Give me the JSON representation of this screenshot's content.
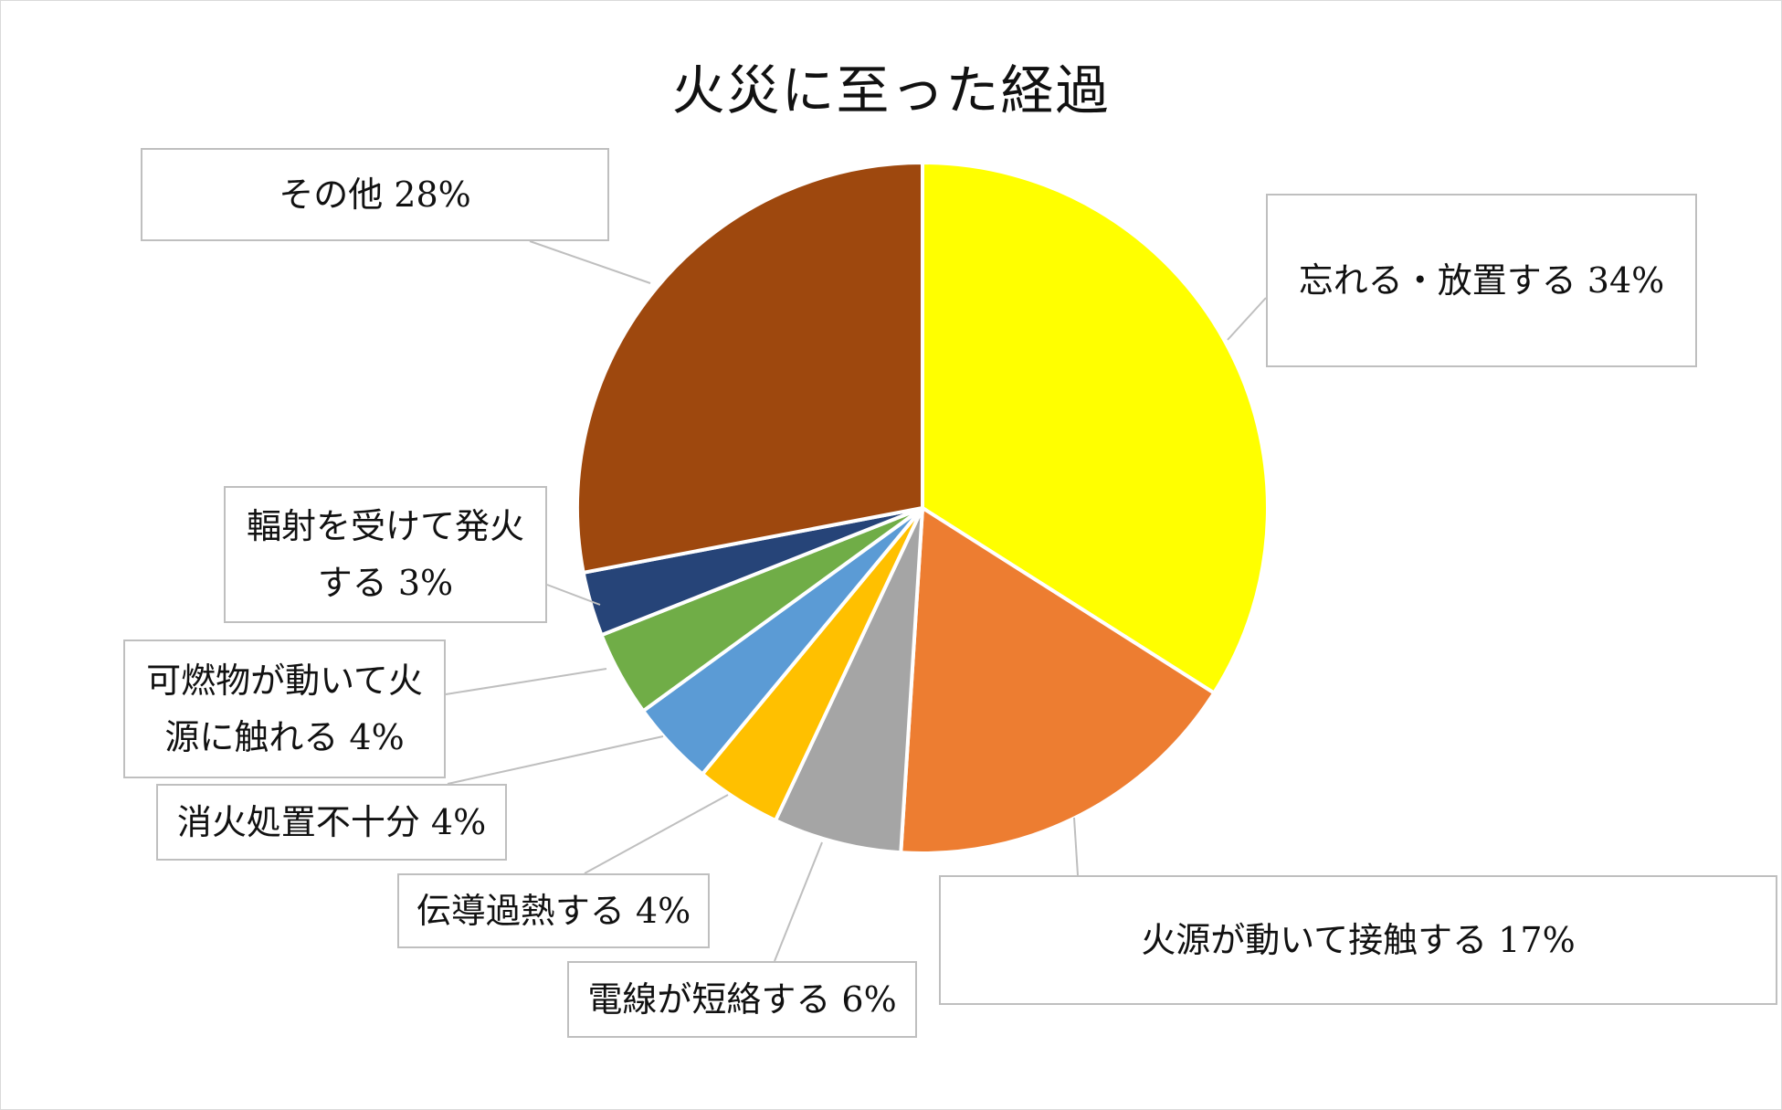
{
  "chart_data": {
    "type": "pie",
    "title": "火災に至った経過",
    "start_angle_deg": 0,
    "direction": "clockwise",
    "slices": [
      {
        "label": "忘れる・放置する 34%",
        "value": 34,
        "color": "#FFFF00"
      },
      {
        "label": "火源が動いて接触する 17%",
        "value": 17,
        "color": "#ED7D31"
      },
      {
        "label": "電線が短絡する 6%",
        "value": 6,
        "color": "#A5A5A5"
      },
      {
        "label": "伝導過熱する 4%",
        "value": 4,
        "color": "#FFC000"
      },
      {
        "label": "消火処置不十分 4%",
        "value": 4,
        "color": "#5B9BD5"
      },
      {
        "label": "可燃物が動いて火源に触れる 4%",
        "value": 4,
        "color": "#70AD47"
      },
      {
        "label": "輻射を受けて発火する 3%",
        "value": 3,
        "color": "#264478"
      },
      {
        "label": "その他 28%",
        "value": 28,
        "color": "#9E480E"
      }
    ],
    "callouts": {
      "s0": [
        "忘れる・放置する 34%"
      ],
      "s1": [
        "火源が動いて接触する 17%"
      ],
      "s2": [
        "電線が短絡する 6%"
      ],
      "s3": [
        "伝導過熱する 4%"
      ],
      "s4": [
        "消火処置不十分 4%"
      ],
      "s5": [
        "可燃物が動いて火",
        "源に触れる 4%"
      ],
      "s6": [
        "輻射を受けて発火",
        "する 3%"
      ],
      "s7": [
        "その他 28%"
      ]
    },
    "legend": "none"
  }
}
